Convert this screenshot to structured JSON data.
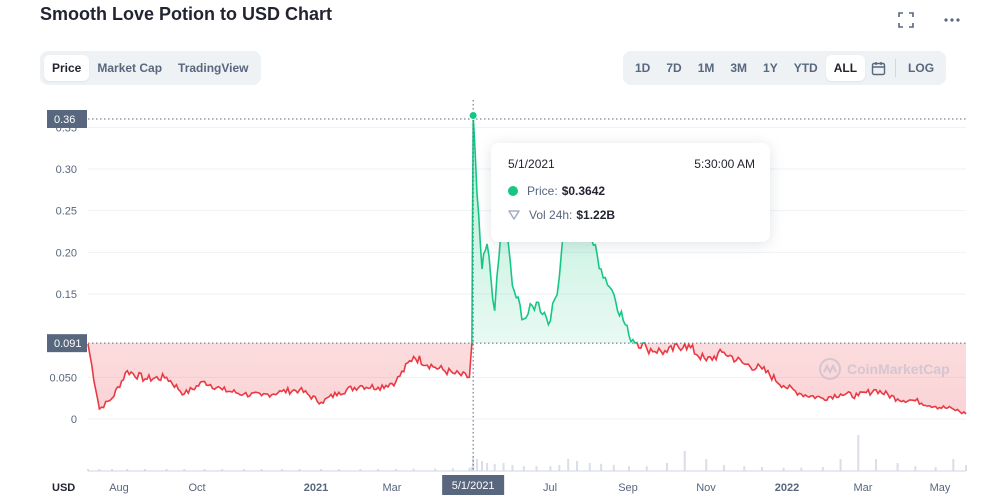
{
  "header": {
    "title": "Smooth Love Potion to USD Chart"
  },
  "top_icons": [
    "fullscreen-icon",
    "more-icon"
  ],
  "view_tabs": [
    {
      "label": "Price",
      "active": true
    },
    {
      "label": "Market Cap",
      "active": false
    },
    {
      "label": "TradingView",
      "active": false
    }
  ],
  "range_tabs": [
    {
      "label": "1D",
      "active": false
    },
    {
      "label": "7D",
      "active": false
    },
    {
      "label": "1M",
      "active": false
    },
    {
      "label": "3M",
      "active": false
    },
    {
      "label": "1Y",
      "active": false
    },
    {
      "label": "YTD",
      "active": false
    },
    {
      "label": "ALL",
      "active": true
    }
  ],
  "log_label": "LOG",
  "tooltip": {
    "date": "5/1/2021",
    "time": "5:30:00 AM",
    "price_label": "Price:",
    "price_value": "$0.3642",
    "vol_label": "Vol 24h:",
    "vol_value": "$1.22B"
  },
  "watermark": "CoinMarketCap",
  "colors": {
    "up": "#16c784",
    "down": "#ea3943",
    "text": "#58667e",
    "marker": "#58667e"
  },
  "chart_data": {
    "type": "line",
    "ylabel": "USD",
    "ylim": [
      0,
      0.36
    ],
    "y_tick_labels": [
      {
        "value": 0,
        "label": "0"
      },
      {
        "value": 0.05,
        "label": "0.050"
      },
      {
        "value": 0.15,
        "label": "0.15"
      },
      {
        "value": 0.2,
        "label": "0.20"
      },
      {
        "value": 0.25,
        "label": "0.25"
      },
      {
        "value": 0.3,
        "label": "0.30"
      },
      {
        "value": 0.35,
        "label": "0.35"
      }
    ],
    "x_tick_labels": [
      "Aug",
      "Oct",
      "2021",
      "Mar",
      "Jul",
      "Sep",
      "Nov",
      "2022",
      "Mar",
      "May"
    ],
    "reference_value": 0.091,
    "reference_label": "0.091",
    "high_value": 0.36,
    "high_label": "0.36",
    "crosshair_label": "5/1/2021",
    "x": [
      "2020-07-01",
      "2020-07-10",
      "2020-07-20",
      "2020-08-01",
      "2020-08-15",
      "2020-09-01",
      "2020-09-15",
      "2020-10-01",
      "2020-10-15",
      "2020-11-01",
      "2020-11-15",
      "2020-12-01",
      "2020-12-15",
      "2021-01-01",
      "2021-01-15",
      "2021-02-01",
      "2021-02-15",
      "2021-03-01",
      "2021-03-15",
      "2021-04-01",
      "2021-04-15",
      "2021-04-28",
      "2021-04-30",
      "2021-05-01",
      "2021-05-04",
      "2021-05-08",
      "2021-05-12",
      "2021-05-18",
      "2021-05-25",
      "2021-06-01",
      "2021-06-10",
      "2021-06-20",
      "2021-07-01",
      "2021-07-08",
      "2021-07-15",
      "2021-07-22",
      "2021-08-01",
      "2021-08-10",
      "2021-08-20",
      "2021-09-01",
      "2021-09-15",
      "2021-10-01",
      "2021-10-15",
      "2021-11-01",
      "2021-11-15",
      "2021-12-01",
      "2021-12-15",
      "2022-01-01",
      "2022-01-15",
      "2022-02-01",
      "2022-02-15",
      "2022-03-01",
      "2022-03-15",
      "2022-04-01",
      "2022-04-15",
      "2022-05-01",
      "2022-05-15",
      "2022-05-25"
    ],
    "series": [
      {
        "values": [
          0.09,
          0.012,
          0.025,
          0.058,
          0.048,
          0.05,
          0.03,
          0.045,
          0.035,
          0.03,
          0.028,
          0.033,
          0.035,
          0.02,
          0.032,
          0.04,
          0.038,
          0.045,
          0.075,
          0.062,
          0.055,
          0.05,
          0.091,
          0.3642,
          0.27,
          0.18,
          0.21,
          0.13,
          0.26,
          0.16,
          0.12,
          0.14,
          0.118,
          0.17,
          0.3,
          0.24,
          0.225,
          0.18,
          0.15,
          0.1,
          0.085,
          0.08,
          0.09,
          0.07,
          0.08,
          0.066,
          0.06,
          0.04,
          0.03,
          0.025,
          0.03,
          0.028,
          0.035,
          0.024,
          0.022,
          0.015,
          0.012,
          0.006
        ]
      }
    ],
    "volume": [
      0.02,
      0.02,
      0.03,
      0.02,
      0.02,
      0.02,
      0.03,
      0.03,
      0.02,
      0.02,
      0.03,
      0.02,
      0.02,
      0.03,
      0.03,
      0.04,
      0.04,
      0.05,
      0.06,
      0.06,
      0.07,
      0.08,
      0.1,
      0.35,
      0.3,
      0.25,
      0.2,
      0.18,
      0.2,
      0.15,
      0.12,
      0.12,
      0.12,
      0.15,
      0.3,
      0.25,
      0.2,
      0.18,
      0.15,
      0.12,
      0.12,
      0.2,
      0.5,
      0.3,
      0.15,
      0.12,
      0.1,
      0.08,
      0.08,
      0.1,
      0.3,
      0.9,
      0.3,
      0.2,
      0.12,
      0.1,
      0.3,
      0.15
    ]
  }
}
